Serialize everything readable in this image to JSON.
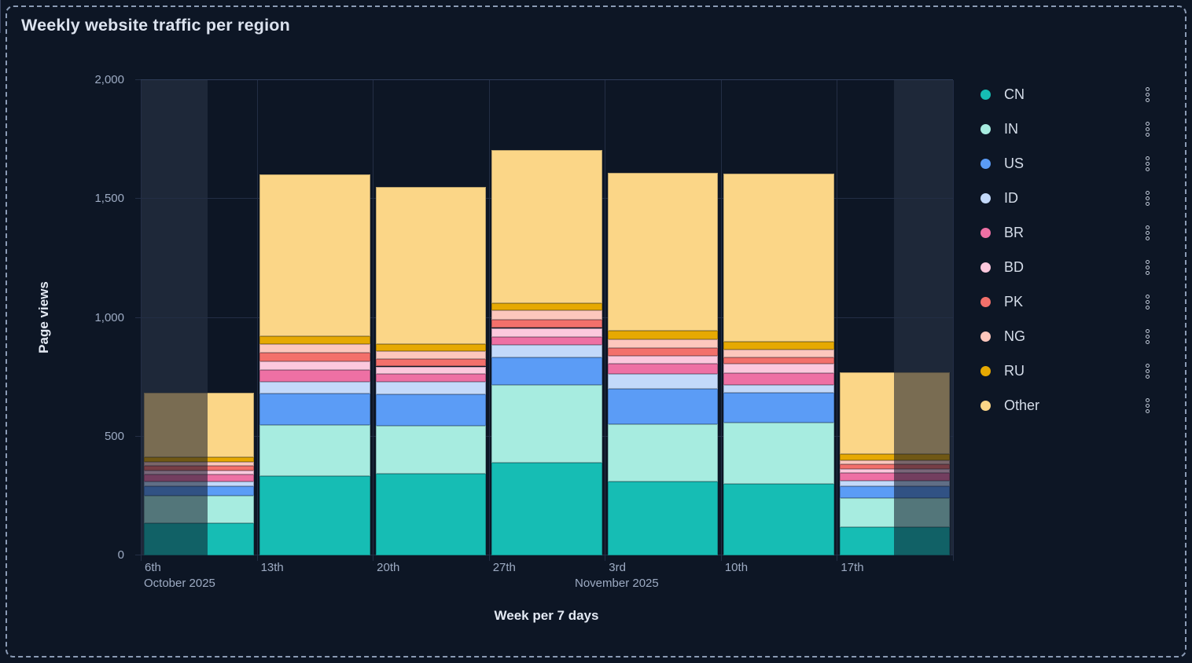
{
  "title": "Weekly website traffic per region",
  "y_axis": {
    "title": "Page views",
    "ticks": [
      {
        "label": "0",
        "value": 0
      },
      {
        "label": "500",
        "value": 500
      },
      {
        "label": "1,000",
        "value": 1000
      },
      {
        "label": "1,500",
        "value": 1500
      },
      {
        "label": "2,000",
        "value": 2000
      }
    ]
  },
  "x_axis": {
    "title": "Week per 7 days",
    "tick_labels": [
      "6th",
      "13th",
      "20th",
      "27th",
      "3rd",
      "10th",
      "17th"
    ],
    "month_labels": [
      {
        "text": "October 2025"
      },
      {
        "text": "November 2025"
      }
    ]
  },
  "legend": {
    "items": [
      {
        "label": "CN",
        "color": "#16bdb4"
      },
      {
        "label": "IN",
        "color": "#a7ece0"
      },
      {
        "label": "US",
        "color": "#5b9cf6"
      },
      {
        "label": "ID",
        "color": "#c3d9fa"
      },
      {
        "label": "BR",
        "color": "#ee70a4"
      },
      {
        "label": "BD",
        "color": "#fcc8dd"
      },
      {
        "label": "PK",
        "color": "#f3706b"
      },
      {
        "label": "NG",
        "color": "#fdc7bd"
      },
      {
        "label": "RU",
        "color": "#e6a902"
      },
      {
        "label": "Other",
        "color": "#fbd687"
      }
    ]
  },
  "chart_data": {
    "type": "bar",
    "stacked": true,
    "categories": [
      "6th",
      "13th",
      "20th",
      "27th",
      "3rd",
      "10th",
      "17th"
    ],
    "series": [
      {
        "name": "CN",
        "color": "#16bdb4",
        "values": [
          135,
          335,
          343,
          390,
          311,
          300,
          119
        ]
      },
      {
        "name": "IN",
        "color": "#a7ece0",
        "values": [
          115,
          215,
          204,
          326,
          240,
          258,
          122
        ]
      },
      {
        "name": "US",
        "color": "#5b9cf6",
        "values": [
          40,
          130,
          132,
          116,
          151,
          127,
          49
        ]
      },
      {
        "name": "ID",
        "color": "#c3d9fa",
        "values": [
          22,
          50,
          50,
          55,
          63,
          33,
          25
        ]
      },
      {
        "name": "BR",
        "color": "#ee70a4",
        "values": [
          28,
          50,
          33,
          33,
          42,
          50,
          33
        ]
      },
      {
        "name": "BD",
        "color": "#fcc8dd",
        "values": [
          16,
          38,
          33,
          37,
          34,
          38,
          17
        ]
      },
      {
        "name": "PK",
        "color": "#f3706b",
        "values": [
          20,
          35,
          33,
          35,
          33,
          28,
          20
        ]
      },
      {
        "name": "NG",
        "color": "#fdc7bd",
        "values": [
          16,
          35,
          33,
          39,
          36,
          31,
          16
        ]
      },
      {
        "name": "RU",
        "color": "#e6a902",
        "values": [
          22,
          35,
          28,
          31,
          35,
          33,
          24
        ]
      },
      {
        "name": "Other",
        "color": "#fbd687",
        "values": [
          270,
          680,
          660,
          645,
          665,
          709,
          345
        ]
      }
    ],
    "ylim": [
      0,
      2000
    ],
    "ylabel": "Page views",
    "xlabel": "Week per 7 days",
    "legend_position": "right",
    "grid": true,
    "partial_week_shading": {
      "first_bar": "left portion dimmed",
      "last_bar": "right portion dimmed"
    }
  },
  "colors": {
    "background": "#0d1625",
    "frame_dash": "#8b9bb5",
    "gridline": "#232e45",
    "out_of_range_band": "#1e2839",
    "axis_text": "#9dabc3",
    "title_text": "#dbe2ee",
    "legend_text": "#d5dde9",
    "dim_overlay": "rgba(14,22,38,0.55)"
  }
}
